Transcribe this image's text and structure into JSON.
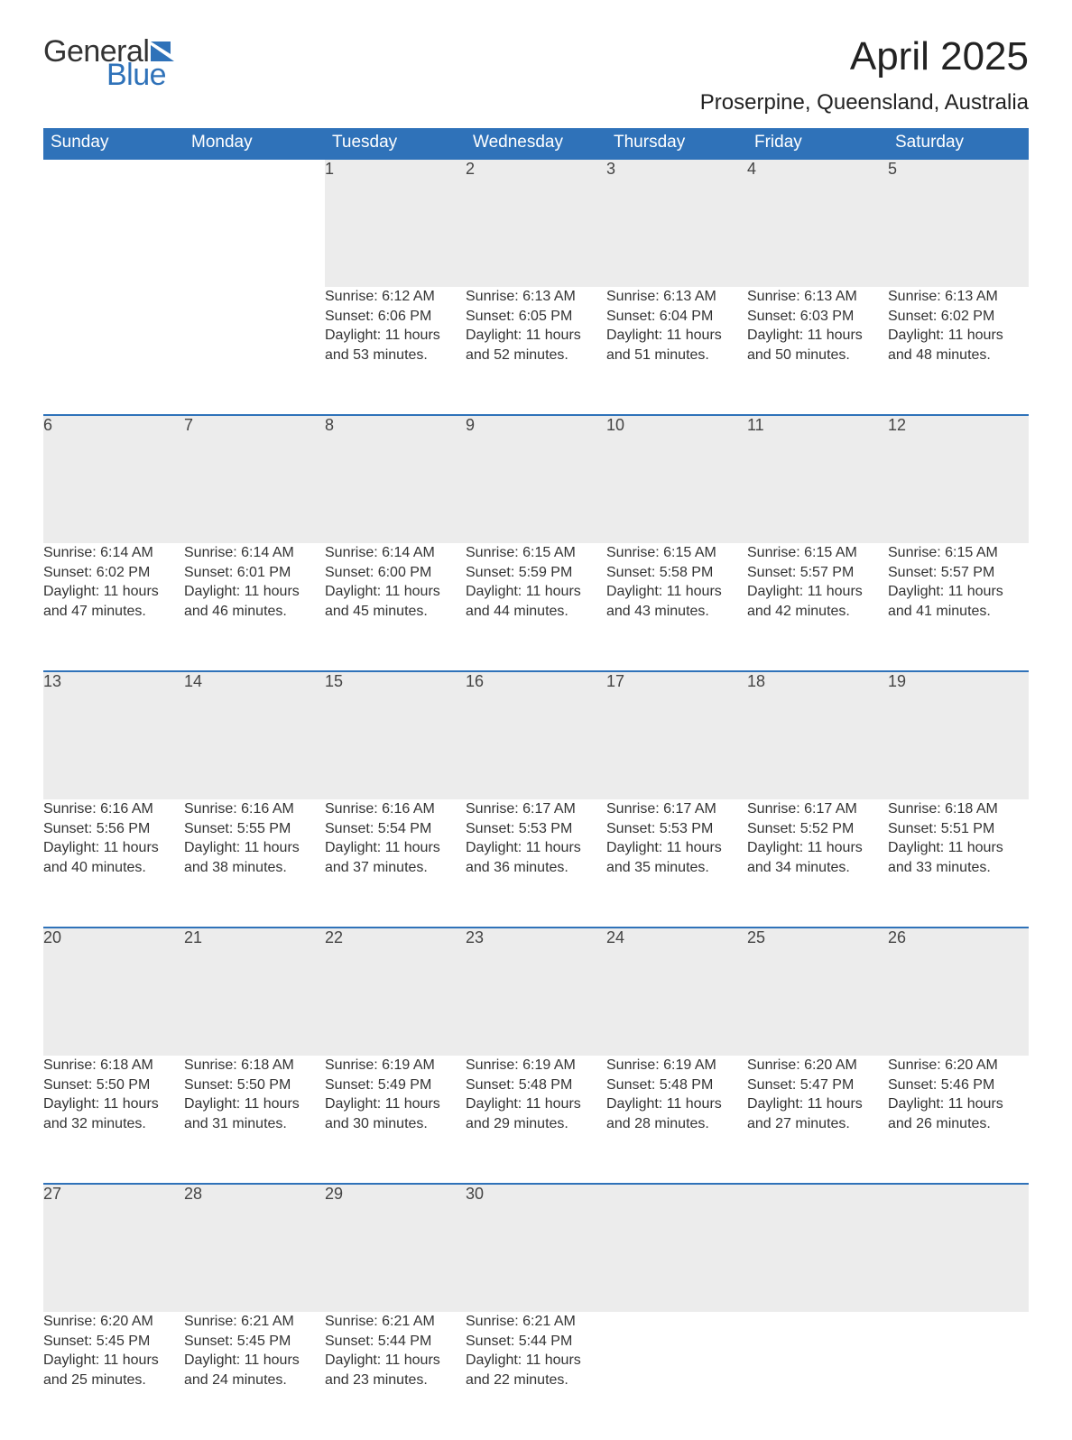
{
  "logo": {
    "word1": "General",
    "word2": "Blue",
    "gray": "#333333",
    "blue": "#2f72b9"
  },
  "title": "April 2025",
  "location": "Proserpine, Queensland, Australia",
  "colors": {
    "header_bg": "#2f72b9",
    "header_text": "#ffffff",
    "daynum_bg": "#ececec",
    "body_text": "#333333",
    "page_bg": "#ffffff",
    "row_top_border": "#2f72b9"
  },
  "fonts": {
    "title_size": 44,
    "location_size": 24,
    "dayhead_size": 19,
    "daynum_size": 18,
    "detail_size": 16
  },
  "day_headers": [
    "Sunday",
    "Monday",
    "Tuesday",
    "Wednesday",
    "Thursday",
    "Friday",
    "Saturday"
  ],
  "weeks": [
    [
      null,
      null,
      {
        "n": "1",
        "sunrise": "6:12 AM",
        "sunset": "6:06 PM",
        "daylight": "11 hours and 53 minutes."
      },
      {
        "n": "2",
        "sunrise": "6:13 AM",
        "sunset": "6:05 PM",
        "daylight": "11 hours and 52 minutes."
      },
      {
        "n": "3",
        "sunrise": "6:13 AM",
        "sunset": "6:04 PM",
        "daylight": "11 hours and 51 minutes."
      },
      {
        "n": "4",
        "sunrise": "6:13 AM",
        "sunset": "6:03 PM",
        "daylight": "11 hours and 50 minutes."
      },
      {
        "n": "5",
        "sunrise": "6:13 AM",
        "sunset": "6:02 PM",
        "daylight": "11 hours and 48 minutes."
      }
    ],
    [
      {
        "n": "6",
        "sunrise": "6:14 AM",
        "sunset": "6:02 PM",
        "daylight": "11 hours and 47 minutes."
      },
      {
        "n": "7",
        "sunrise": "6:14 AM",
        "sunset": "6:01 PM",
        "daylight": "11 hours and 46 minutes."
      },
      {
        "n": "8",
        "sunrise": "6:14 AM",
        "sunset": "6:00 PM",
        "daylight": "11 hours and 45 minutes."
      },
      {
        "n": "9",
        "sunrise": "6:15 AM",
        "sunset": "5:59 PM",
        "daylight": "11 hours and 44 minutes."
      },
      {
        "n": "10",
        "sunrise": "6:15 AM",
        "sunset": "5:58 PM",
        "daylight": "11 hours and 43 minutes."
      },
      {
        "n": "11",
        "sunrise": "6:15 AM",
        "sunset": "5:57 PM",
        "daylight": "11 hours and 42 minutes."
      },
      {
        "n": "12",
        "sunrise": "6:15 AM",
        "sunset": "5:57 PM",
        "daylight": "11 hours and 41 minutes."
      }
    ],
    [
      {
        "n": "13",
        "sunrise": "6:16 AM",
        "sunset": "5:56 PM",
        "daylight": "11 hours and 40 minutes."
      },
      {
        "n": "14",
        "sunrise": "6:16 AM",
        "sunset": "5:55 PM",
        "daylight": "11 hours and 38 minutes."
      },
      {
        "n": "15",
        "sunrise": "6:16 AM",
        "sunset": "5:54 PM",
        "daylight": "11 hours and 37 minutes."
      },
      {
        "n": "16",
        "sunrise": "6:17 AM",
        "sunset": "5:53 PM",
        "daylight": "11 hours and 36 minutes."
      },
      {
        "n": "17",
        "sunrise": "6:17 AM",
        "sunset": "5:53 PM",
        "daylight": "11 hours and 35 minutes."
      },
      {
        "n": "18",
        "sunrise": "6:17 AM",
        "sunset": "5:52 PM",
        "daylight": "11 hours and 34 minutes."
      },
      {
        "n": "19",
        "sunrise": "6:18 AM",
        "sunset": "5:51 PM",
        "daylight": "11 hours and 33 minutes."
      }
    ],
    [
      {
        "n": "20",
        "sunrise": "6:18 AM",
        "sunset": "5:50 PM",
        "daylight": "11 hours and 32 minutes."
      },
      {
        "n": "21",
        "sunrise": "6:18 AM",
        "sunset": "5:50 PM",
        "daylight": "11 hours and 31 minutes."
      },
      {
        "n": "22",
        "sunrise": "6:19 AM",
        "sunset": "5:49 PM",
        "daylight": "11 hours and 30 minutes."
      },
      {
        "n": "23",
        "sunrise": "6:19 AM",
        "sunset": "5:48 PM",
        "daylight": "11 hours and 29 minutes."
      },
      {
        "n": "24",
        "sunrise": "6:19 AM",
        "sunset": "5:48 PM",
        "daylight": "11 hours and 28 minutes."
      },
      {
        "n": "25",
        "sunrise": "6:20 AM",
        "sunset": "5:47 PM",
        "daylight": "11 hours and 27 minutes."
      },
      {
        "n": "26",
        "sunrise": "6:20 AM",
        "sunset": "5:46 PM",
        "daylight": "11 hours and 26 minutes."
      }
    ],
    [
      {
        "n": "27",
        "sunrise": "6:20 AM",
        "sunset": "5:45 PM",
        "daylight": "11 hours and 25 minutes."
      },
      {
        "n": "28",
        "sunrise": "6:21 AM",
        "sunset": "5:45 PM",
        "daylight": "11 hours and 24 minutes."
      },
      {
        "n": "29",
        "sunrise": "6:21 AM",
        "sunset": "5:44 PM",
        "daylight": "11 hours and 23 minutes."
      },
      {
        "n": "30",
        "sunrise": "6:21 AM",
        "sunset": "5:44 PM",
        "daylight": "11 hours and 22 minutes."
      },
      null,
      null,
      null
    ]
  ],
  "labels": {
    "sunrise": "Sunrise:",
    "sunset": "Sunset:",
    "daylight": "Daylight:"
  }
}
